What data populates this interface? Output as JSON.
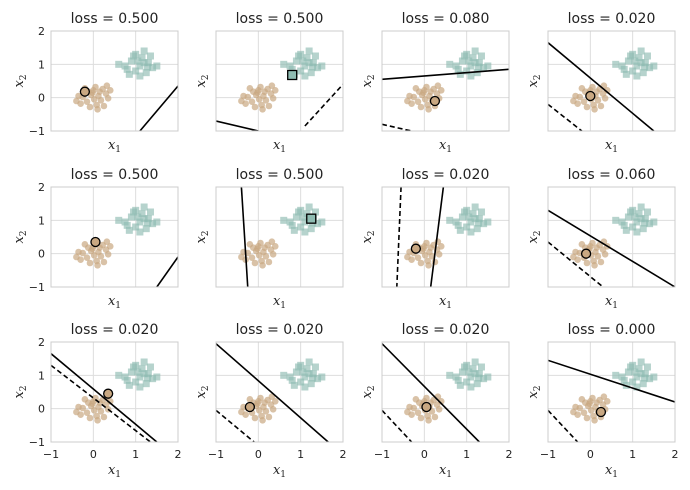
{
  "chart_data": {
    "type": "scatter",
    "grid": true,
    "xlabel": "x",
    "xlabel_sub": "1",
    "ylabel": "x",
    "ylabel_sub": "2",
    "xlim": [
      -1,
      2
    ],
    "ylim": [
      -1,
      2
    ],
    "xticks": [
      -1,
      0,
      1,
      2
    ],
    "yticks": [
      -1,
      0,
      1,
      2
    ],
    "colors": {
      "class_a": "#c9a882",
      "class_b": "#8fbcb2",
      "boundary": "#000000",
      "frame": "#cccccc",
      "grid": "#dddddd"
    },
    "class_a_points": [
      [
        0.05,
        0.32
      ],
      [
        -0.12,
        0.18
      ],
      [
        0.22,
        0.26
      ],
      [
        -0.05,
        0.08
      ],
      [
        0.12,
        0.05
      ],
      [
        -0.25,
        0.02
      ],
      [
        0.3,
        0.12
      ],
      [
        0.02,
        -0.05
      ],
      [
        -0.15,
        -0.12
      ],
      [
        0.18,
        -0.08
      ],
      [
        -0.3,
        -0.18
      ],
      [
        0.08,
        -0.22
      ],
      [
        0.35,
        -0.02
      ],
      [
        -0.08,
        -0.28
      ],
      [
        0.25,
        -0.25
      ],
      [
        -0.35,
        0.05
      ],
      [
        0.15,
        0.18
      ],
      [
        -0.2,
        0.28
      ],
      [
        0.4,
        0.22
      ],
      [
        0.0,
        0.22
      ],
      [
        -0.4,
        -0.1
      ],
      [
        0.1,
        -0.35
      ],
      [
        0.32,
        0.36
      ],
      [
        -0.02,
        0.15
      ]
    ],
    "class_b_points": [
      [
        1.0,
        1.3
      ],
      [
        1.15,
        1.2
      ],
      [
        0.9,
        1.1
      ],
      [
        1.3,
        1.05
      ],
      [
        1.1,
        0.95
      ],
      [
        0.75,
        0.95
      ],
      [
        1.4,
        0.9
      ],
      [
        1.0,
        0.8
      ],
      [
        1.25,
        0.75
      ],
      [
        0.85,
        0.7
      ],
      [
        1.2,
        1.4
      ],
      [
        1.35,
        1.25
      ],
      [
        0.6,
        1.0
      ],
      [
        1.1,
        0.65
      ],
      [
        1.5,
        0.95
      ],
      [
        1.05,
        1.1
      ],
      [
        0.95,
        1.25
      ],
      [
        1.28,
        0.92
      ],
      [
        1.2,
        1.05
      ],
      [
        0.8,
        0.85
      ]
    ],
    "panels": [
      {
        "title": "loss = 0.500",
        "solid": [
          [
            1.1,
            -1.0
          ],
          [
            2.0,
            0.35
          ]
        ],
        "dashed": null,
        "highlight": {
          "shape": "circle",
          "point": [
            -0.2,
            0.18
          ]
        }
      },
      {
        "title": "loss = 0.500",
        "solid": [
          [
            -1.0,
            -0.7
          ],
          [
            0.0,
            -1.0
          ]
        ],
        "dashed": [
          [
            1.1,
            -0.85
          ],
          [
            2.0,
            0.4
          ]
        ],
        "highlight": {
          "shape": "square",
          "point": [
            0.8,
            0.68
          ]
        }
      },
      {
        "title": "loss = 0.080",
        "solid": [
          [
            -1.0,
            0.55
          ],
          [
            2.0,
            0.85
          ]
        ],
        "dashed": [
          [
            -1.0,
            -0.8
          ],
          [
            -0.3,
            -1.0
          ]
        ],
        "highlight": {
          "shape": "circle",
          "point": [
            0.25,
            -0.1
          ]
        }
      },
      {
        "title": "loss = 0.020",
        "solid": [
          [
            -1.0,
            1.65
          ],
          [
            1.5,
            -1.0
          ]
        ],
        "dashed": [
          [
            -1.0,
            -0.2
          ],
          [
            -0.2,
            -1.0
          ]
        ],
        "highlight": {
          "shape": "circle",
          "point": [
            0.0,
            0.05
          ]
        }
      },
      {
        "title": "loss = 0.500",
        "solid": [
          [
            1.5,
            -1.0
          ],
          [
            2.0,
            -0.1
          ]
        ],
        "dashed": null,
        "highlight": {
          "shape": "circle",
          "point": [
            0.05,
            0.35
          ]
        }
      },
      {
        "title": "loss = 0.500",
        "solid": [
          [
            -0.4,
            2.0
          ],
          [
            -0.25,
            -1.0
          ]
        ],
        "dashed": null,
        "highlight": {
          "shape": "square",
          "point": [
            1.25,
            1.05
          ]
        }
      },
      {
        "title": "loss = 0.020",
        "solid": [
          [
            0.45,
            2.0
          ],
          [
            0.15,
            -1.0
          ]
        ],
        "dashed": [
          [
            -0.55,
            2.0
          ],
          [
            -0.65,
            -1.0
          ]
        ],
        "highlight": {
          "shape": "circle",
          "point": [
            -0.2,
            0.15
          ]
        }
      },
      {
        "title": "loss = 0.060",
        "solid": [
          [
            -1.0,
            1.3
          ],
          [
            2.0,
            -1.0
          ]
        ],
        "dashed": [
          [
            -1.0,
            0.35
          ],
          [
            0.3,
            -1.0
          ]
        ],
        "highlight": {
          "shape": "circle",
          "point": [
            -0.1,
            0.0
          ]
        }
      },
      {
        "title": "loss = 0.020",
        "solid": [
          [
            -1.0,
            1.65
          ],
          [
            1.5,
            -1.0
          ]
        ],
        "dashed": [
          [
            -1.0,
            1.3
          ],
          [
            1.35,
            -1.0
          ]
        ],
        "highlight": {
          "shape": "circle",
          "point": [
            0.35,
            0.45
          ]
        }
      },
      {
        "title": "loss = 0.020",
        "solid": [
          [
            -1.0,
            1.95
          ],
          [
            1.65,
            -1.0
          ]
        ],
        "dashed": [
          [
            -1.0,
            -0.05
          ],
          [
            -0.1,
            -1.0
          ]
        ],
        "highlight": {
          "shape": "circle",
          "point": [
            -0.2,
            0.05
          ]
        }
      },
      {
        "title": "loss = 0.020",
        "solid": [
          [
            -1.0,
            1.95
          ],
          [
            1.3,
            -1.0
          ]
        ],
        "dashed": [
          [
            -1.0,
            -0.05
          ],
          [
            -0.3,
            -1.0
          ]
        ],
        "highlight": {
          "shape": "circle",
          "point": [
            0.05,
            0.05
          ]
        }
      },
      {
        "title": "loss = 0.000",
        "solid": [
          [
            -1.0,
            1.45
          ],
          [
            2.0,
            0.2
          ]
        ],
        "dashed": [
          [
            -1.0,
            -0.05
          ],
          [
            -0.3,
            -1.0
          ]
        ],
        "highlight": {
          "shape": "circle",
          "point": [
            0.25,
            -0.1
          ]
        }
      }
    ]
  }
}
